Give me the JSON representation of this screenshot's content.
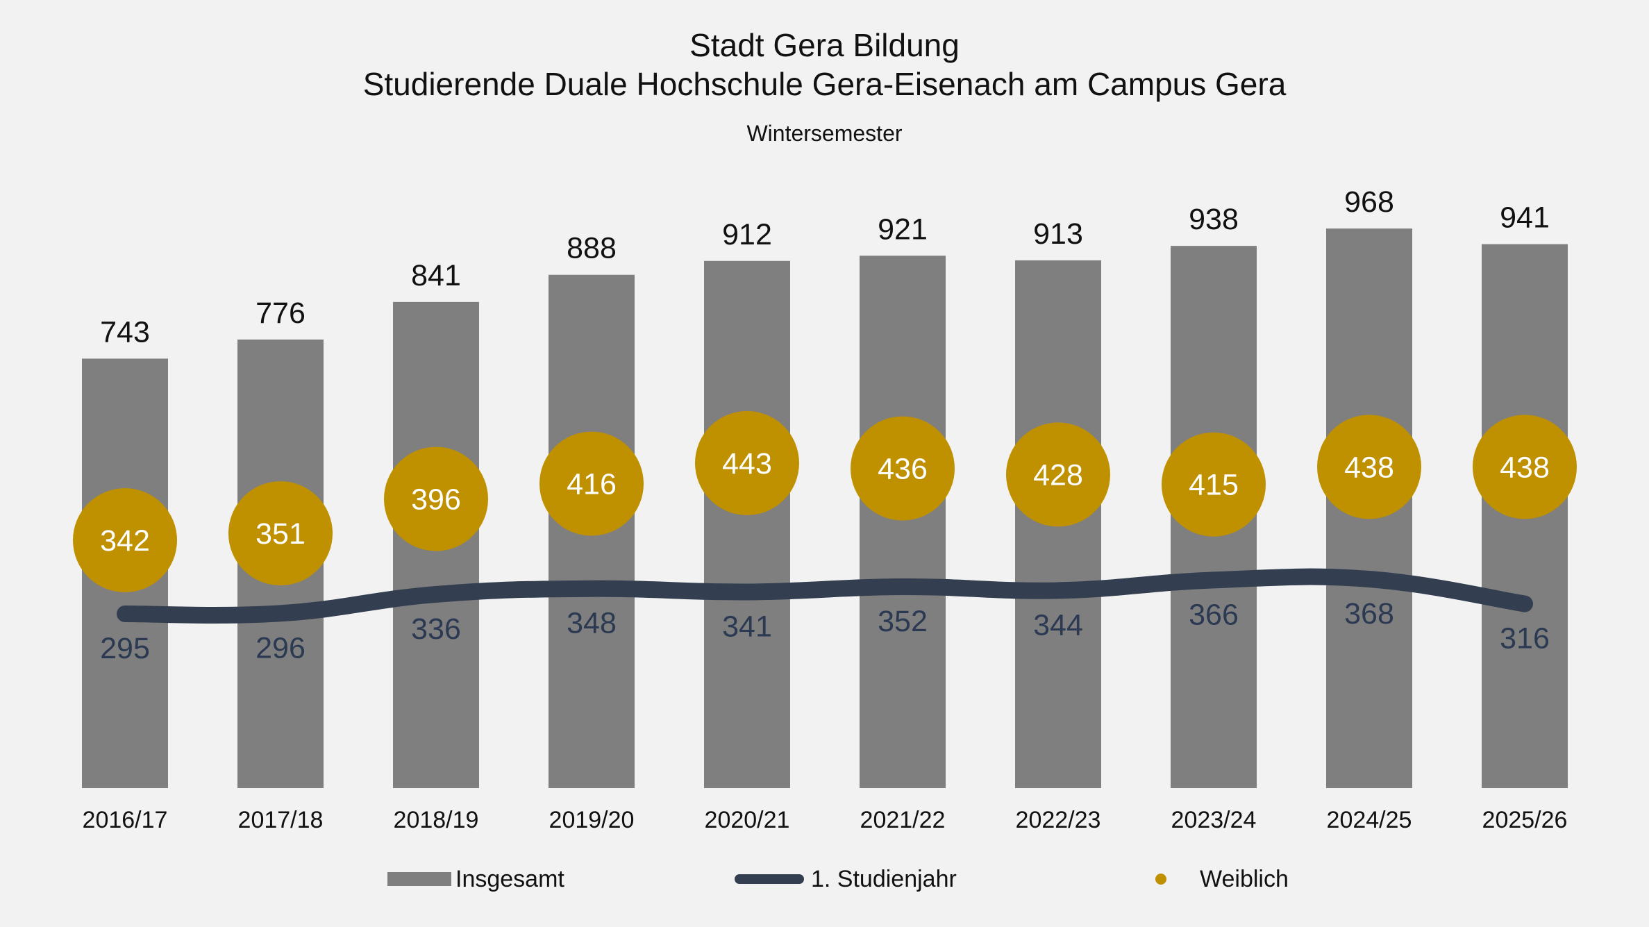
{
  "chart_data": {
    "type": "bar",
    "title": "Stadt Gera Bildung",
    "title_line2": "Studierende Duale Hochschule Gera-Eisenach am Campus Gera",
    "subtitle": "Wintersemester",
    "categories": [
      "2016/17",
      "2017/18",
      "2018/19",
      "2019/20",
      "2020/21",
      "2021/22",
      "2022/23",
      "2023/24",
      "2024/25",
      "2025/26"
    ],
    "series": [
      {
        "name": "Insgesamt",
        "kind": "bar",
        "color": "#7f7f7f",
        "values": [
          743,
          776,
          841,
          888,
          912,
          921,
          913,
          938,
          968,
          941
        ]
      },
      {
        "name": "1. Studienjahr",
        "kind": "line",
        "color": "#333f50",
        "values": [
          295,
          296,
          336,
          348,
          341,
          352,
          344,
          366,
          368,
          316
        ]
      },
      {
        "name": "Weiblich",
        "kind": "dot",
        "color": "#bf9000",
        "values": [
          342,
          351,
          396,
          416,
          443,
          436,
          428,
          415,
          438,
          438
        ]
      }
    ],
    "legend_position": "bottom",
    "grid": false,
    "ylim": [
      0,
      1000
    ]
  }
}
